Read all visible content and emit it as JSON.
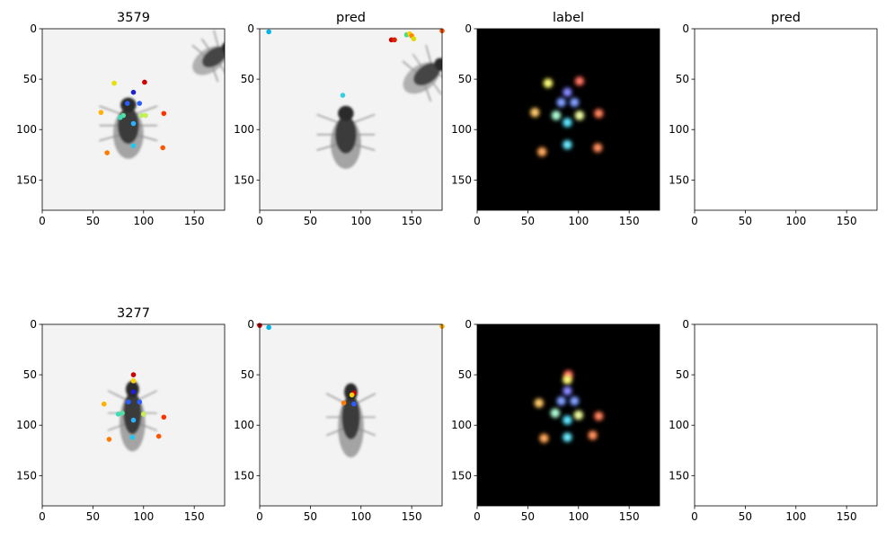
{
  "chart_data": [
    {
      "type": "scatter",
      "title": "3579",
      "background": "fly-photo-light",
      "xlim": [
        0,
        180
      ],
      "ylim": [
        180,
        0
      ],
      "xticks": [
        0,
        50,
        100,
        150
      ],
      "yticks": [
        0,
        50,
        100,
        150
      ],
      "flies": [
        {
          "x": 85,
          "y": 96,
          "rx": 13,
          "ry": 33,
          "angle": 0,
          "fill": "#3a3a3a",
          "wing": "#8a8a8a"
        },
        {
          "x": 170,
          "y": 28,
          "rx": 10,
          "ry": 25,
          "angle": 55,
          "fill": "#444444",
          "wing": "#9a9a9a"
        }
      ],
      "points": [
        {
          "x": 101,
          "y": 53,
          "color": "#cc0000"
        },
        {
          "x": 90,
          "y": 63,
          "color": "#1f1fd6"
        },
        {
          "x": 84,
          "y": 74,
          "color": "#2a5cff"
        },
        {
          "x": 96,
          "y": 74,
          "color": "#2a5cff"
        },
        {
          "x": 71,
          "y": 54,
          "color": "#e8e000"
        },
        {
          "x": 90,
          "y": 94,
          "color": "#2ab0ff"
        },
        {
          "x": 80,
          "y": 86,
          "color": "#55e0a0"
        },
        {
          "x": 77,
          "y": 88,
          "color": "#3cdcb4"
        },
        {
          "x": 102,
          "y": 86,
          "color": "#c8f050"
        },
        {
          "x": 98,
          "y": 86,
          "color": "#b8f060"
        },
        {
          "x": 58,
          "y": 83,
          "color": "#ffb000"
        },
        {
          "x": 120,
          "y": 84,
          "color": "#ff3300"
        },
        {
          "x": 90,
          "y": 116,
          "color": "#20c8f0"
        },
        {
          "x": 64,
          "y": 123,
          "color": "#ff7a00"
        },
        {
          "x": 119,
          "y": 118,
          "color": "#ff5500"
        }
      ]
    },
    {
      "type": "scatter",
      "title": "pred",
      "background": "fly-photo-light",
      "xlim": [
        0,
        180
      ],
      "ylim": [
        180,
        0
      ],
      "xticks": [
        0,
        50,
        100,
        150
      ],
      "yticks": [
        0,
        50,
        100,
        150
      ],
      "flies": [
        {
          "x": 85,
          "y": 105,
          "rx": 13,
          "ry": 34,
          "angle": 0,
          "fill": "#3a3a3a",
          "wing": "#8a8a8a"
        },
        {
          "x": 165,
          "y": 45,
          "rx": 11,
          "ry": 27,
          "angle": 55,
          "fill": "#444444",
          "wing": "#9a9a9a"
        }
      ],
      "points": [
        {
          "x": 9,
          "y": 3,
          "color": "#00b4e8"
        },
        {
          "x": 180,
          "y": 2,
          "color": "#ff5500"
        },
        {
          "x": 130,
          "y": 11,
          "color": "#cc0000"
        },
        {
          "x": 133,
          "y": 11,
          "color": "#dd2200"
        },
        {
          "x": 145,
          "y": 6,
          "color": "#44dd88"
        },
        {
          "x": 148,
          "y": 5,
          "color": "#ffcc00"
        },
        {
          "x": 150,
          "y": 7,
          "color": "#ff8800"
        },
        {
          "x": 152,
          "y": 10,
          "color": "#d8e000"
        },
        {
          "x": 82,
          "y": 66,
          "color": "#30d0e0"
        }
      ]
    },
    {
      "type": "heatmap",
      "title": "label",
      "background": "black",
      "xlim": [
        0,
        180
      ],
      "ylim": [
        180,
        0
      ],
      "xticks": [
        0,
        50,
        100,
        150
      ],
      "yticks": [
        0,
        50,
        100,
        150
      ],
      "blobs": [
        {
          "x": 101,
          "y": 52,
          "color": "#ff5a4a"
        },
        {
          "x": 89,
          "y": 63,
          "color": "#7070ff"
        },
        {
          "x": 83,
          "y": 73,
          "color": "#6a8cff"
        },
        {
          "x": 96,
          "y": 73,
          "color": "#6a8cff"
        },
        {
          "x": 70,
          "y": 54,
          "color": "#ffff60"
        },
        {
          "x": 89,
          "y": 93,
          "color": "#40e0ff"
        },
        {
          "x": 78,
          "y": 86,
          "color": "#a0ffd0"
        },
        {
          "x": 101,
          "y": 86,
          "color": "#f0ff90"
        },
        {
          "x": 57,
          "y": 83,
          "color": "#ffc050"
        },
        {
          "x": 120,
          "y": 84,
          "color": "#ff6a40"
        },
        {
          "x": 89,
          "y": 115,
          "color": "#50e8ff"
        },
        {
          "x": 64,
          "y": 122,
          "color": "#ff9a40"
        },
        {
          "x": 119,
          "y": 118,
          "color": "#ff7a40"
        }
      ]
    },
    {
      "type": "scatter",
      "title": "pred",
      "background": "white",
      "xlim": [
        0,
        180
      ],
      "ylim": [
        180,
        0
      ],
      "xticks": [
        0,
        50,
        100,
        150
      ],
      "yticks": [
        0,
        50,
        100,
        150
      ],
      "points": []
    },
    {
      "type": "scatter",
      "title": "3277",
      "background": "fly-photo-light",
      "xlim": [
        0,
        180
      ],
      "ylim": [
        180,
        0
      ],
      "xticks": [
        0,
        50,
        100,
        150
      ],
      "yticks": [
        0,
        50,
        100,
        150
      ],
      "flies": [
        {
          "x": 89,
          "y": 88,
          "rx": 11,
          "ry": 38,
          "angle": 0,
          "fill": "#3a3a3a",
          "wing": "#8a8a8a"
        }
      ],
      "points": [
        {
          "x": 90,
          "y": 50,
          "color": "#cc0000"
        },
        {
          "x": 90,
          "y": 56,
          "color": "#ffd000"
        },
        {
          "x": 90,
          "y": 67,
          "color": "#1f1fd6"
        },
        {
          "x": 85,
          "y": 77,
          "color": "#2a5cff"
        },
        {
          "x": 96,
          "y": 77,
          "color": "#2a5cff"
        },
        {
          "x": 90,
          "y": 95,
          "color": "#2ab0ff"
        },
        {
          "x": 79,
          "y": 88,
          "color": "#55e0a0"
        },
        {
          "x": 75,
          "y": 89,
          "color": "#3cdcb4"
        },
        {
          "x": 100,
          "y": 89,
          "color": "#c8f050"
        },
        {
          "x": 61,
          "y": 79,
          "color": "#ffb000"
        },
        {
          "x": 120,
          "y": 92,
          "color": "#ff3300"
        },
        {
          "x": 89,
          "y": 112,
          "color": "#20c8f0"
        },
        {
          "x": 66,
          "y": 114,
          "color": "#ff7a00"
        },
        {
          "x": 115,
          "y": 111,
          "color": "#ff5500"
        }
      ]
    },
    {
      "type": "scatter",
      "title": "",
      "background": "fly-photo-light",
      "xlim": [
        0,
        180
      ],
      "ylim": [
        180,
        0
      ],
      "xticks": [
        0,
        50,
        100,
        150
      ],
      "yticks": [
        0,
        50,
        100,
        150
      ],
      "flies": [
        {
          "x": 90,
          "y": 92,
          "rx": 11,
          "ry": 40,
          "angle": 0,
          "fill": "#3a3a3a",
          "wing": "#8a8a8a"
        }
      ],
      "points": [
        {
          "x": 0,
          "y": 1,
          "color": "#cc0000"
        },
        {
          "x": 9,
          "y": 3,
          "color": "#00b4e8"
        },
        {
          "x": 180,
          "y": 2,
          "color": "#ffb000"
        },
        {
          "x": 93,
          "y": 68,
          "color": "#cc0000"
        },
        {
          "x": 91,
          "y": 70,
          "color": "#ffd000"
        },
        {
          "x": 83,
          "y": 78,
          "color": "#ff7a00"
        },
        {
          "x": 93,
          "y": 79,
          "color": "#2a5cff"
        }
      ]
    },
    {
      "type": "heatmap",
      "title": "",
      "background": "black",
      "xlim": [
        0,
        180
      ],
      "ylim": [
        180,
        0
      ],
      "xticks": [
        0,
        50,
        100,
        150
      ],
      "yticks": [
        0,
        50,
        100,
        150
      ],
      "blobs": [
        {
          "x": 90,
          "y": 50,
          "color": "#ff5a4a"
        },
        {
          "x": 89,
          "y": 55,
          "color": "#ffff60"
        },
        {
          "x": 89,
          "y": 66,
          "color": "#7070ff"
        },
        {
          "x": 83,
          "y": 76,
          "color": "#6a8cff"
        },
        {
          "x": 96,
          "y": 76,
          "color": "#6a8cff"
        },
        {
          "x": 89,
          "y": 95,
          "color": "#40e0ff"
        },
        {
          "x": 77,
          "y": 88,
          "color": "#a0ffd0"
        },
        {
          "x": 100,
          "y": 90,
          "color": "#f0ff90"
        },
        {
          "x": 61,
          "y": 78,
          "color": "#ffc050"
        },
        {
          "x": 120,
          "y": 91,
          "color": "#ff6a40"
        },
        {
          "x": 89,
          "y": 112,
          "color": "#50e8ff"
        },
        {
          "x": 66,
          "y": 113,
          "color": "#ff9a40"
        },
        {
          "x": 114,
          "y": 110,
          "color": "#ff7a40"
        }
      ]
    },
    {
      "type": "scatter",
      "title": "",
      "background": "white",
      "xlim": [
        0,
        180
      ],
      "ylim": [
        180,
        0
      ],
      "xticks": [
        0,
        50,
        100,
        150
      ],
      "yticks": [
        0,
        50,
        100,
        150
      ],
      "points": []
    }
  ]
}
